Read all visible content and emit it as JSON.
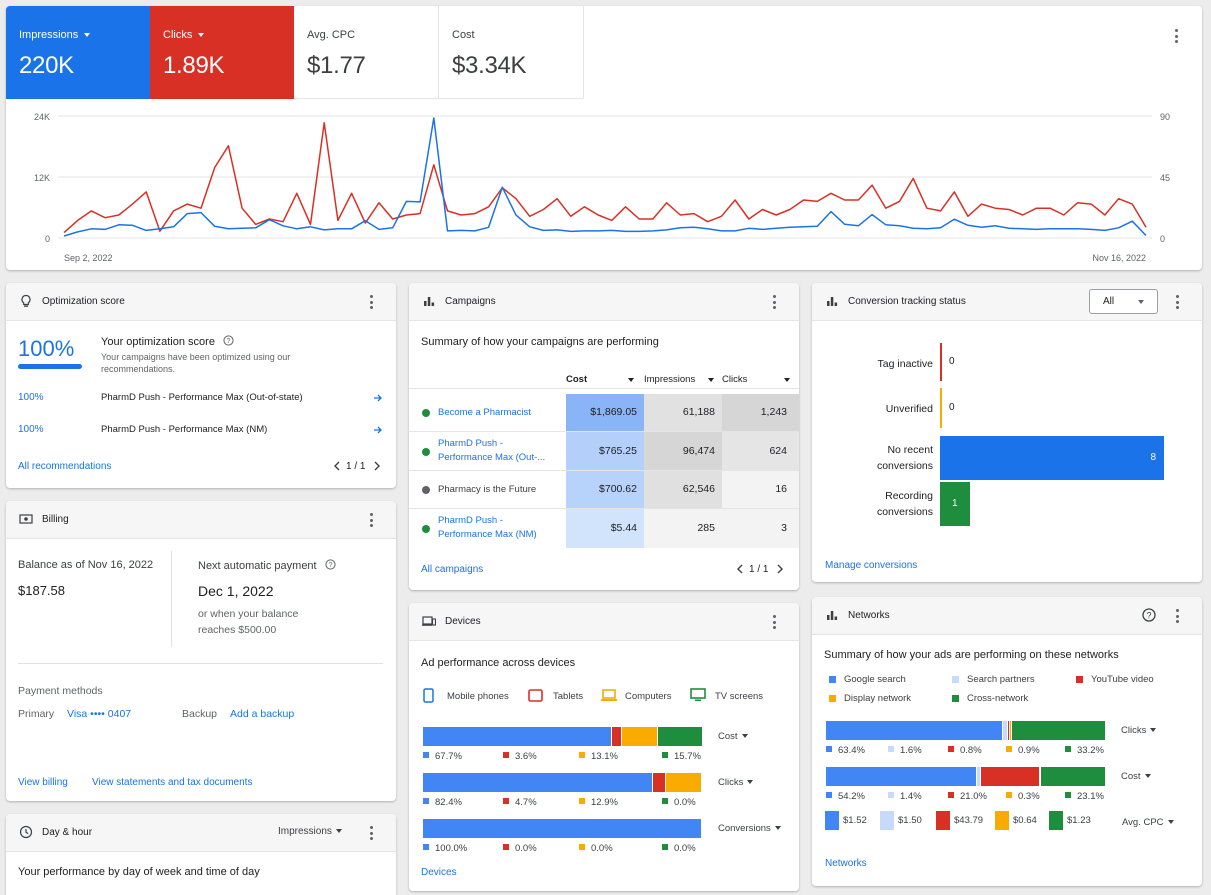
{
  "colors": {
    "blue": "#1a73e8",
    "red": "#d93025",
    "yellow": "#f9ab00",
    "green": "#1e8e3e",
    "light_blue": "#c6dafc",
    "grey_dot": "#5f6368"
  },
  "metrics": [
    {
      "name": "Impressions",
      "value": "220K",
      "color": "#1a73e8"
    },
    {
      "name": "Clicks",
      "value": "1.89K",
      "color": "#d93025"
    },
    {
      "name": "Avg. CPC",
      "value": "$1.77"
    },
    {
      "name": "Cost",
      "value": "$3.34K"
    }
  ],
  "chart_data": {
    "type": "line",
    "x_start": "Sep 2, 2022",
    "x_end": "Nov 16, 2022",
    "y_left_ticks": [
      "24K",
      "12K",
      "0"
    ],
    "y_right_ticks": [
      "90",
      "45",
      "0"
    ],
    "ylim_left": [
      0,
      24000
    ],
    "ylim_right": [
      0,
      90
    ],
    "series": [
      {
        "name": "Impressions",
        "axis": "left",
        "values": [
          400,
          1200,
          1800,
          1700,
          2600,
          2500,
          1500,
          1800,
          2200,
          4800,
          5000,
          2300,
          1800,
          1900,
          2000,
          3600,
          2400,
          1800,
          2200,
          1600,
          1800,
          1800,
          3400,
          1700,
          2000,
          7200,
          7100,
          23600,
          1400,
          1500,
          1400,
          2100,
          10000,
          4500,
          2200,
          1500,
          1600,
          1300,
          1400,
          1400,
          1500,
          1300,
          1300,
          1400,
          1600,
          2000,
          2100,
          1800,
          1400,
          1400,
          1900,
          1700,
          1900,
          2100,
          2200,
          2300,
          5200,
          2700,
          2400,
          4600,
          2600,
          2400,
          1900,
          1800,
          2000,
          3700,
          2500,
          2100,
          2400,
          1900,
          1800,
          1700,
          1800,
          1800,
          1800,
          1700,
          1500,
          2000,
          3300,
          500
        ]
      },
      {
        "name": "Clicks",
        "axis": "right",
        "values": [
          4,
          13,
          20,
          15,
          17,
          25,
          34,
          5,
          20,
          25,
          22,
          52,
          68,
          22,
          10,
          14,
          12,
          33,
          10,
          85,
          13,
          33,
          11,
          26,
          14,
          17,
          18,
          54,
          20,
          17,
          18,
          23,
          37,
          29,
          16,
          21,
          29,
          16,
          23,
          17,
          13,
          23,
          14,
          14,
          26,
          17,
          18,
          12,
          16,
          28,
          14,
          21,
          17,
          21,
          28,
          27,
          33,
          28,
          28,
          39,
          22,
          27,
          44,
          22,
          20,
          34,
          16,
          25,
          22,
          21,
          17,
          22,
          22,
          17,
          26,
          25,
          17,
          29,
          25,
          8
        ]
      }
    ]
  },
  "optimization": {
    "title": "Optimization score",
    "score": "100%",
    "heading": "Your optimization score",
    "description": "Your campaigns have been optimized using our recommendations.",
    "items": [
      {
        "pct": "100%",
        "name": "PharmD Push - Performance Max (Out-of-state)"
      },
      {
        "pct": "100%",
        "name": "PharmD Push - Performance Max (NM)"
      }
    ],
    "link": "All recommendations",
    "pager": "1 / 1"
  },
  "billing": {
    "title": "Billing",
    "balance_label": "Balance as of Nov 16, 2022",
    "balance": "$187.58",
    "next_label": "Next automatic payment",
    "next_date": "Dec 1, 2022",
    "next_note_1": "or when your balance",
    "next_note_2": "reaches $500.00",
    "payment_label": "Payment methods",
    "primary_label": "Primary",
    "primary_value": "Visa •••• 0407",
    "backup_label": "Backup",
    "backup_link": "Add a backup",
    "link1": "View billing",
    "link2": "View statements and tax documents"
  },
  "dayhour": {
    "title": "Day & hour",
    "dropdown": "Impressions",
    "summary": "Your performance by day of week and time of day"
  },
  "campaigns": {
    "title": "Campaigns",
    "summary": "Summary of how your campaigns are performing",
    "columns": [
      "Cost",
      "Impressions",
      "Clicks"
    ],
    "rows": [
      {
        "name1": "Become a Pharmacist",
        "name2": "",
        "status": "green",
        "cost": "$1,869.05",
        "impr": "61,188",
        "clicks": "1,243",
        "cost_shade": 1.0,
        "impr_shade": 0.63,
        "click_shade": 1.0
      },
      {
        "name1": "PharmD Push -",
        "name2": "Performance Max (Out-...",
        "status": "green",
        "cost": "$765.25",
        "impr": "96,474",
        "clicks": "624",
        "cost_shade": 0.41,
        "impr_shade": 1.0,
        "click_shade": 0.5
      },
      {
        "name1": "Pharmacy is the Future",
        "name2": "",
        "status": "grey",
        "cost": "$700.62",
        "impr": "62,546",
        "clicks": "16",
        "cost_shade": 0.37,
        "impr_shade": 0.65,
        "click_shade": 0.01
      },
      {
        "name1": "PharmD Push -",
        "name2": "Performance Max (NM)",
        "status": "green",
        "cost": "$5.44",
        "impr": "285",
        "clicks": "3",
        "cost_shade": 0.0,
        "impr_shade": 0.0,
        "click_shade": 0.0
      }
    ],
    "link": "All campaigns",
    "pager": "1 / 1"
  },
  "devices": {
    "title": "Devices",
    "summary": "Ad performance across devices",
    "legend": [
      "Mobile phones",
      "Tablets",
      "Computers",
      "TV screens"
    ],
    "bars": [
      {
        "metric": "Cost",
        "values": [
          67.7,
          3.6,
          13.1,
          15.7
        ],
        "labels": [
          "67.7%",
          "3.6%",
          "13.1%",
          "15.7%"
        ]
      },
      {
        "metric": "Clicks",
        "values": [
          82.4,
          4.7,
          12.9,
          0.0
        ],
        "labels": [
          "82.4%",
          "4.7%",
          "12.9%",
          "0.0%"
        ]
      },
      {
        "metric": "Conversions",
        "values": [
          100.0,
          0.0,
          0.0,
          0.0
        ],
        "labels": [
          "100.0%",
          "0.0%",
          "0.0%",
          "0.0%"
        ]
      }
    ],
    "link": "Devices"
  },
  "conversion": {
    "title": "Conversion tracking status",
    "filter": "All",
    "rows": [
      {
        "label1": "Tag inactive",
        "label2": "",
        "value": 0,
        "display": "0",
        "color": "#d93025"
      },
      {
        "label1": "Unverified",
        "label2": "",
        "value": 0,
        "display": "0",
        "color": "#f9ab00"
      },
      {
        "label1": "No recent",
        "label2": "conversions",
        "value": 8,
        "display": "8",
        "color": "#1a73e8"
      },
      {
        "label1": "Recording",
        "label2": "conversions",
        "value": 1,
        "display": "1",
        "color": "#1e8e3e"
      }
    ],
    "link": "Manage conversions"
  },
  "networks": {
    "title": "Networks",
    "summary": "Summary of how your ads are performing on these networks",
    "legend": [
      "Google search",
      "Search partners",
      "YouTube video",
      "Display network",
      "Cross-network"
    ],
    "bars": [
      {
        "metric": "Clicks",
        "values": [
          63.4,
          1.6,
          0.8,
          0.9,
          33.2
        ],
        "labels": [
          "63.4%",
          "1.6%",
          "0.8%",
          "0.9%",
          "33.2%"
        ]
      },
      {
        "metric": "Cost",
        "values": [
          54.2,
          1.4,
          21.0,
          0.3,
          23.1
        ],
        "labels": [
          "54.2%",
          "1.4%",
          "21.0%",
          "0.3%",
          "23.1%"
        ]
      }
    ],
    "cpc_metric": "Avg. CPC",
    "cpc": [
      "$1.52",
      "$1.50",
      "$43.79",
      "$0.64",
      "$1.23"
    ],
    "link": "Networks"
  }
}
